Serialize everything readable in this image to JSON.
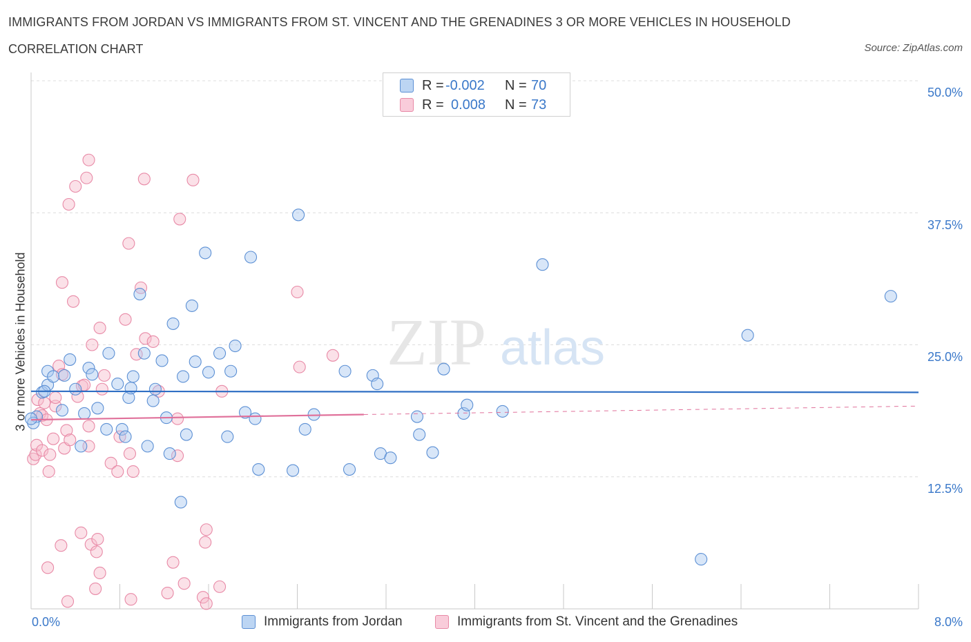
{
  "header": {
    "title": "IMMIGRANTS FROM JORDAN VS IMMIGRANTS FROM ST. VINCENT AND THE GRENADINES 3 OR MORE VEHICLES IN HOUSEHOLD",
    "subtitle": "CORRELATION CHART",
    "source": "Source: ZipAtlas.com"
  },
  "watermark": {
    "zip": "ZIP",
    "atlas": "atlas"
  },
  "legend": {
    "r_label": "R =",
    "n_label": "N =",
    "series": [
      {
        "r": "-0.002",
        "n": "70"
      },
      {
        "r": "0.008",
        "n": "73"
      }
    ]
  },
  "colors": {
    "jordan_fill": "#a9c8ef",
    "jordan_stroke": "#5b8fd4",
    "jordan_line": "#2f6fc4",
    "svg_fill": "#f6bccd",
    "svg_stroke": "#e889a6",
    "svg_line": "#e0709a",
    "grid": "#dcdcdc",
    "tick_text": "#3a78c9"
  },
  "chart_data": {
    "type": "scatter",
    "title": "IMMIGRANTS FROM JORDAN VS IMMIGRANTS FROM ST. VINCENT AND THE GRENADINES 3 OR MORE VEHICLES IN HOUSEHOLD",
    "xlabel": "",
    "ylabel": "3 or more Vehicles in Household",
    "xlim": [
      0,
      8
    ],
    "ylim": [
      0,
      50
    ],
    "x_tick_labels": [
      "0.0%",
      "8.0%"
    ],
    "y_ticks": [
      12.5,
      25.0,
      37.5,
      50.0
    ],
    "y_tick_labels": [
      "12.5%",
      "25.0%",
      "37.5%",
      "50.0%"
    ],
    "grid": true,
    "legend_position": "top-center",
    "series": [
      {
        "name": "Immigrants from Jordan",
        "trend": {
          "x": [
            0.0,
            8.0
          ],
          "y": [
            20.6,
            20.5
          ]
        },
        "points": [
          [
            0.05,
            18.2
          ],
          [
            0.1,
            20.5
          ],
          [
            0.15,
            21.2
          ],
          [
            0.15,
            22.5
          ],
          [
            0.2,
            22.0
          ],
          [
            0.28,
            18.8
          ],
          [
            0.3,
            22.1
          ],
          [
            0.35,
            23.6
          ],
          [
            0.4,
            20.8
          ],
          [
            0.45,
            15.4
          ],
          [
            0.48,
            18.5
          ],
          [
            0.52,
            22.8
          ],
          [
            0.55,
            22.2
          ],
          [
            0.6,
            19.0
          ],
          [
            0.68,
            17.0
          ],
          [
            0.7,
            24.2
          ],
          [
            0.78,
            21.3
          ],
          [
            0.82,
            17.0
          ],
          [
            0.85,
            16.3
          ],
          [
            0.88,
            20.0
          ],
          [
            0.9,
            20.9
          ],
          [
            0.92,
            22.0
          ],
          [
            0.98,
            29.8
          ],
          [
            1.02,
            24.2
          ],
          [
            1.05,
            15.4
          ],
          [
            1.1,
            19.7
          ],
          [
            1.12,
            20.8
          ],
          [
            1.18,
            23.5
          ],
          [
            1.22,
            18.1
          ],
          [
            1.25,
            14.7
          ],
          [
            1.28,
            27.0
          ],
          [
            1.35,
            10.1
          ],
          [
            1.37,
            22.0
          ],
          [
            1.4,
            16.5
          ],
          [
            1.45,
            28.7
          ],
          [
            1.48,
            23.4
          ],
          [
            1.57,
            33.7
          ],
          [
            1.6,
            22.4
          ],
          [
            1.7,
            24.2
          ],
          [
            1.77,
            16.3
          ],
          [
            1.8,
            22.5
          ],
          [
            1.84,
            24.9
          ],
          [
            1.98,
            33.3
          ],
          [
            2.05,
            13.2
          ],
          [
            1.93,
            18.6
          ],
          [
            2.02,
            18.0
          ],
          [
            2.36,
            13.1
          ],
          [
            2.41,
            37.3
          ],
          [
            2.47,
            17.0
          ],
          [
            2.55,
            18.4
          ],
          [
            2.83,
            22.5
          ],
          [
            2.87,
            13.2
          ],
          [
            3.08,
            22.1
          ],
          [
            3.12,
            21.3
          ],
          [
            3.15,
            14.7
          ],
          [
            3.24,
            14.3
          ],
          [
            3.48,
            18.2
          ],
          [
            3.5,
            16.5
          ],
          [
            3.62,
            14.8
          ],
          [
            3.72,
            22.7
          ],
          [
            3.9,
            18.5
          ],
          [
            3.93,
            19.3
          ],
          [
            4.25,
            18.7
          ],
          [
            4.61,
            32.6
          ],
          [
            6.04,
            4.7
          ],
          [
            6.46,
            25.9
          ],
          [
            7.75,
            29.6
          ],
          [
            0.02,
            17.6
          ],
          [
            0.0,
            18.0
          ],
          [
            0.12,
            20.6
          ]
        ]
      },
      {
        "name": "Immigrants from St. Vincent and the Grenadines",
        "trend": {
          "x": [
            0.0,
            3.0
          ],
          "y": [
            17.9,
            18.4
          ]
        },
        "trend_dashed": {
          "x": [
            3.0,
            8.0
          ],
          "y": [
            18.4,
            19.2
          ]
        },
        "points": [
          [
            0.02,
            14.2
          ],
          [
            0.04,
            14.6
          ],
          [
            0.05,
            15.5
          ],
          [
            0.06,
            19.8
          ],
          [
            0.08,
            18.5
          ],
          [
            0.1,
            15.0
          ],
          [
            0.1,
            18.3
          ],
          [
            0.12,
            19.5
          ],
          [
            0.14,
            17.9
          ],
          [
            0.15,
            3.9
          ],
          [
            0.16,
            13.0
          ],
          [
            0.17,
            14.6
          ],
          [
            0.2,
            16.1
          ],
          [
            0.22,
            19.2
          ],
          [
            0.22,
            20.0
          ],
          [
            0.25,
            23.0
          ],
          [
            0.27,
            6.0
          ],
          [
            0.28,
            30.9
          ],
          [
            0.28,
            22.2
          ],
          [
            0.3,
            15.2
          ],
          [
            0.32,
            16.9
          ],
          [
            0.33,
            0.7
          ],
          [
            0.34,
            38.3
          ],
          [
            0.35,
            16.0
          ],
          [
            0.38,
            29.1
          ],
          [
            0.4,
            40.0
          ],
          [
            0.42,
            20.1
          ],
          [
            0.45,
            7.2
          ],
          [
            0.46,
            21.1
          ],
          [
            0.48,
            21.2
          ],
          [
            0.5,
            40.8
          ],
          [
            0.52,
            15.4
          ],
          [
            0.52,
            17.3
          ],
          [
            0.52,
            42.5
          ],
          [
            0.54,
            6.1
          ],
          [
            0.55,
            25.0
          ],
          [
            0.58,
            1.9
          ],
          [
            0.59,
            5.4
          ],
          [
            0.6,
            6.6
          ],
          [
            0.62,
            3.4
          ],
          [
            0.62,
            26.6
          ],
          [
            0.64,
            20.8
          ],
          [
            0.66,
            22.1
          ],
          [
            0.72,
            13.8
          ],
          [
            0.78,
            13.0
          ],
          [
            0.8,
            16.3
          ],
          [
            0.85,
            27.4
          ],
          [
            0.88,
            34.6
          ],
          [
            0.89,
            14.7
          ],
          [
            0.9,
            0.9
          ],
          [
            0.95,
            24.1
          ],
          [
            0.99,
            30.4
          ],
          [
            1.02,
            40.7
          ],
          [
            1.03,
            25.6
          ],
          [
            1.1,
            25.3
          ],
          [
            1.15,
            20.6
          ],
          [
            1.23,
            1.5
          ],
          [
            1.28,
            4.4
          ],
          [
            1.32,
            14.5
          ],
          [
            1.32,
            18.0
          ],
          [
            1.34,
            36.9
          ],
          [
            1.38,
            2.4
          ],
          [
            1.46,
            40.6
          ],
          [
            1.55,
            1.1
          ],
          [
            1.57,
            6.3
          ],
          [
            1.58,
            0.5
          ],
          [
            1.58,
            7.5
          ],
          [
            1.7,
            2.1
          ],
          [
            1.72,
            20.6
          ],
          [
            2.4,
            30.0
          ],
          [
            2.42,
            22.9
          ],
          [
            2.72,
            24.0
          ],
          [
            0.92,
            13.0
          ]
        ]
      }
    ]
  }
}
